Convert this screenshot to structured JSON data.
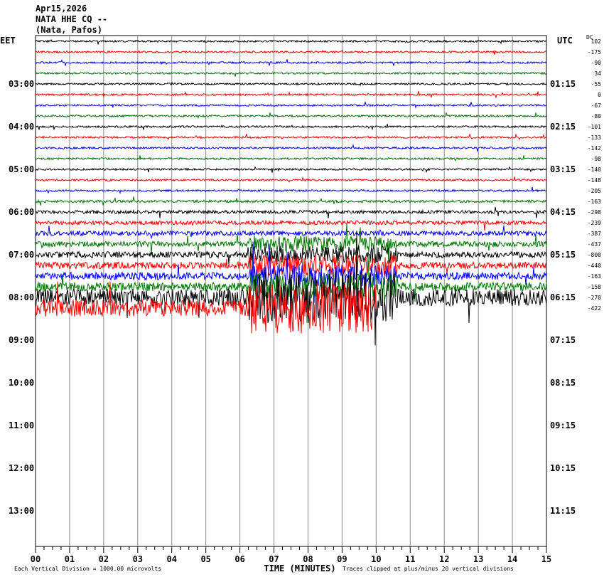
{
  "header": {
    "date": "Apr15,2026",
    "station": "NATA HHE CQ --",
    "location": "(Nata, Pafos)"
  },
  "left_zone": "EET",
  "right_zone": "UTC",
  "dc_label": "DC",
  "left_times": [
    "03:00",
    "04:00",
    "05:00",
    "06:00",
    "07:00",
    "08:00",
    "09:00",
    "10:00",
    "11:00",
    "12:00",
    "13:00"
  ],
  "right_times": [
    "01:15",
    "02:15",
    "03:15",
    "04:15",
    "05:15",
    "06:15",
    "07:15",
    "08:15",
    "09:15",
    "10:15",
    "11:15"
  ],
  "x_labels": [
    "00",
    "01",
    "02",
    "03",
    "04",
    "05",
    "06",
    "07",
    "08",
    "09",
    "10",
    "11",
    "12",
    "13",
    "14",
    "15"
  ],
  "x_axis_label": "TIME (MINUTES)",
  "offsets": [
    102,
    -175,
    -90,
    34,
    -55,
    0,
    -67,
    -80,
    -101,
    -133,
    -142,
    -98,
    -140,
    -148,
    -205,
    -163,
    -298,
    -239,
    -387,
    -437,
    -800,
    -440,
    -163,
    -158,
    -270,
    -422
  ],
  "footer": {
    "scale": "Each Vertical Division = 1000.00 microvolts",
    "clip": "Traces clipped at plus/minus 20 vertical divisions"
  }
}
